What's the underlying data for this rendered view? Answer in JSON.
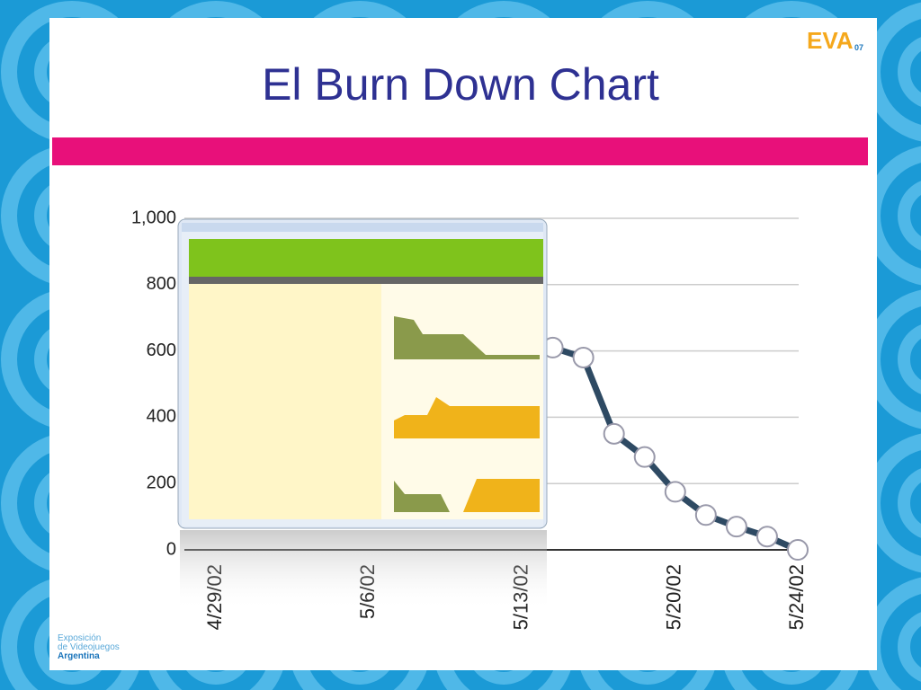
{
  "slide": {
    "logo": "EVA",
    "logo_year": "07",
    "footer_lines": [
      "Exposición",
      "de Videojuegos",
      "Argentina"
    ]
  },
  "chart_data": {
    "type": "line",
    "title": "El Burn Down Chart",
    "categories": [
      "4/29/02",
      null,
      null,
      null,
      null,
      "5/6/02",
      null,
      null,
      null,
      null,
      "5/13/02",
      null,
      null,
      null,
      null,
      "5/20/02",
      null,
      null,
      null,
      "5/24/02"
    ],
    "series": [
      {
        "name": "Burn Down",
        "color": "#2e4a63",
        "values": [
          null,
          null,
          null,
          null,
          null,
          null,
          null,
          null,
          null,
          null,
          null,
          610,
          580,
          350,
          280,
          175,
          105,
          70,
          40,
          0
        ]
      }
    ],
    "ylim": [
      0,
      1000
    ],
    "yticks": [
      0,
      200,
      400,
      600,
      800,
      {
        "value": 1000,
        "label": "1,000"
      }
    ],
    "grid": true
  }
}
